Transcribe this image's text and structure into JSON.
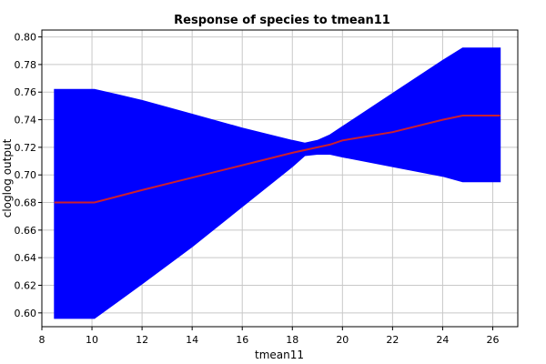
{
  "chart_data": {
    "type": "area",
    "title": "Response of species to tmean11",
    "xlabel": "tmean11",
    "ylabel": "cloglog output",
    "xlim": [
      8,
      27
    ],
    "ylim": [
      0.59,
      0.805
    ],
    "x_ticks": [
      8,
      10,
      12,
      14,
      16,
      18,
      20,
      22,
      24,
      26
    ],
    "x_tick_labels": [
      "8",
      "10",
      "12",
      "14",
      "16",
      "18",
      "20",
      "22",
      "24",
      "26"
    ],
    "y_ticks": [
      0.6,
      0.62,
      0.64,
      0.66,
      0.68,
      0.7,
      0.72,
      0.74,
      0.76,
      0.78,
      0.8
    ],
    "y_tick_labels": [
      "0.60",
      "0.62",
      "0.64",
      "0.66",
      "0.68",
      "0.70",
      "0.72",
      "0.74",
      "0.76",
      "0.78",
      "0.80"
    ],
    "grid": true,
    "band_color": "#0000ff",
    "line_color": "#cc1f2e",
    "x": [
      8.5,
      10.1,
      12,
      14,
      16,
      18,
      18.5,
      19,
      19.5,
      20,
      22,
      24,
      24.8,
      26.3
    ],
    "lower": [
      0.596,
      0.596,
      0.621,
      0.648,
      0.677,
      0.706,
      0.714,
      0.715,
      0.715,
      0.713,
      0.706,
      0.699,
      0.695,
      0.695
    ],
    "upper": [
      0.762,
      0.762,
      0.754,
      0.744,
      0.734,
      0.725,
      0.723,
      0.725,
      0.729,
      0.735,
      0.759,
      0.783,
      0.792,
      0.792
    ],
    "mean": [
      0.68,
      0.68,
      0.689,
      0.698,
      0.707,
      0.716,
      0.718,
      0.72,
      0.722,
      0.725,
      0.731,
      0.74,
      0.743,
      0.743
    ]
  }
}
